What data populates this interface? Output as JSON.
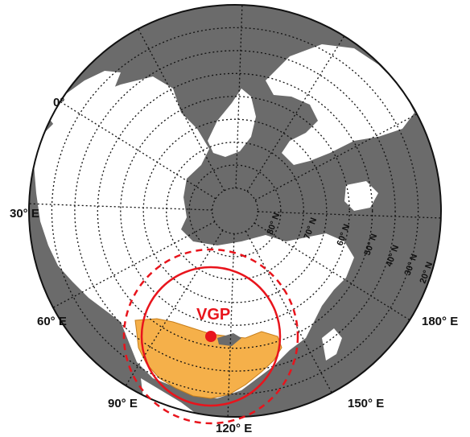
{
  "colors": {
    "ocean": "#6b6b6b",
    "land": "#ffffff",
    "border": "#555555",
    "graticule": "#111111",
    "highlight_region": "#f5b04a",
    "vgp": "#e8141c"
  },
  "longitude_labels": [
    {
      "text": "0°",
      "lon": 0
    },
    {
      "text": "30° E",
      "lon": 30
    },
    {
      "text": "60° E",
      "lon": 60
    },
    {
      "text": "90° E",
      "lon": 90
    },
    {
      "text": "120° E",
      "lon": 120
    },
    {
      "text": "150° E",
      "lon": 150
    },
    {
      "text": "180° E",
      "lon": 180
    }
  ],
  "latitude_labels": [
    {
      "text": "80° N",
      "lat": 80
    },
    {
      "text": "70° N",
      "lat": 70
    },
    {
      "text": "60° N",
      "lat": 60
    },
    {
      "text": "50° N",
      "lat": 50
    },
    {
      "text": "40° N",
      "lat": 40
    },
    {
      "text": "30° N",
      "lat": 30
    },
    {
      "text": "20° N",
      "lat": 20
    }
  ],
  "vgp": {
    "label": "VGP"
  },
  "legend_icons": [
    "vgp-marker-icon"
  ]
}
